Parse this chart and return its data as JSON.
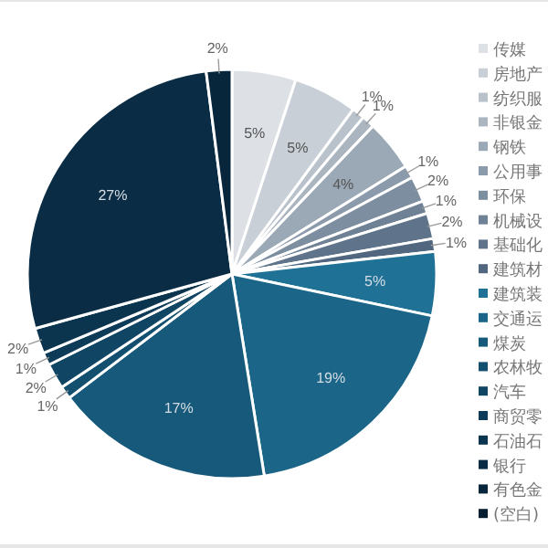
{
  "chart_data": {
    "type": "pie",
    "legend": "right",
    "categories": [
      "传媒",
      "房地产",
      "纺织服",
      "非银金",
      "钢铁",
      "公用事",
      "环保",
      "机械设",
      "基础化",
      "建筑材",
      "建筑装",
      "交通运",
      "煤炭",
      "农林牧",
      "汽车",
      "商贸零",
      "石油石",
      "银行",
      "有色金",
      "(空白)"
    ],
    "values": [
      5,
      5,
      1,
      1,
      4,
      1,
      2,
      1,
      2,
      1,
      5,
      19,
      17,
      1,
      2,
      1,
      2,
      27,
      2,
      null
    ],
    "value_labels": [
      "5%",
      "5%",
      "1%",
      "1%",
      "4%",
      "1%",
      "2%",
      "1%",
      "2%",
      "1%",
      "5%",
      "19%",
      "17%",
      "1%",
      "2%",
      "1%",
      "2%",
      "27%",
      "2%",
      null
    ],
    "colors": [
      "#dde1e6",
      "#c8cfd6",
      "#b9c2cb",
      "#aab5c0",
      "#9ba8b5",
      "#8c9bab",
      "#7d8ea0",
      "#6e8195",
      "#5f748a",
      "#50677f",
      "#1f7196",
      "#1a6588",
      "#16597a",
      "#134f6e",
      "#104563",
      "#0e3c58",
      "#0b344e",
      "#0a2d45",
      "#08263b",
      "#061f32"
    ]
  }
}
